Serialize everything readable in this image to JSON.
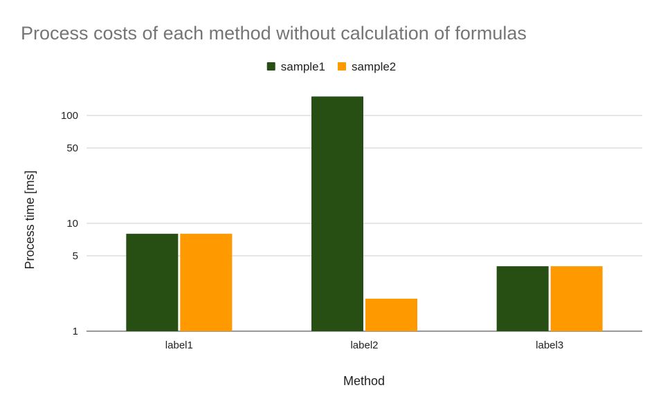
{
  "chart_data": {
    "type": "bar",
    "title": "Process costs of each method without calculation of formulas",
    "xlabel": "Method",
    "ylabel": "Process time [ms]",
    "y_scale": "log",
    "ylim": [
      1,
      160
    ],
    "y_ticks": [
      1,
      5,
      10,
      50,
      100
    ],
    "grid": true,
    "legend_position": "top-center",
    "categories": [
      "label1",
      "label2",
      "label3"
    ],
    "series": [
      {
        "name": "sample1",
        "color": "#274e13",
        "values": [
          8,
          150,
          4
        ]
      },
      {
        "name": "sample2",
        "color": "#ff9900",
        "values": [
          8,
          2,
          4
        ]
      }
    ]
  }
}
